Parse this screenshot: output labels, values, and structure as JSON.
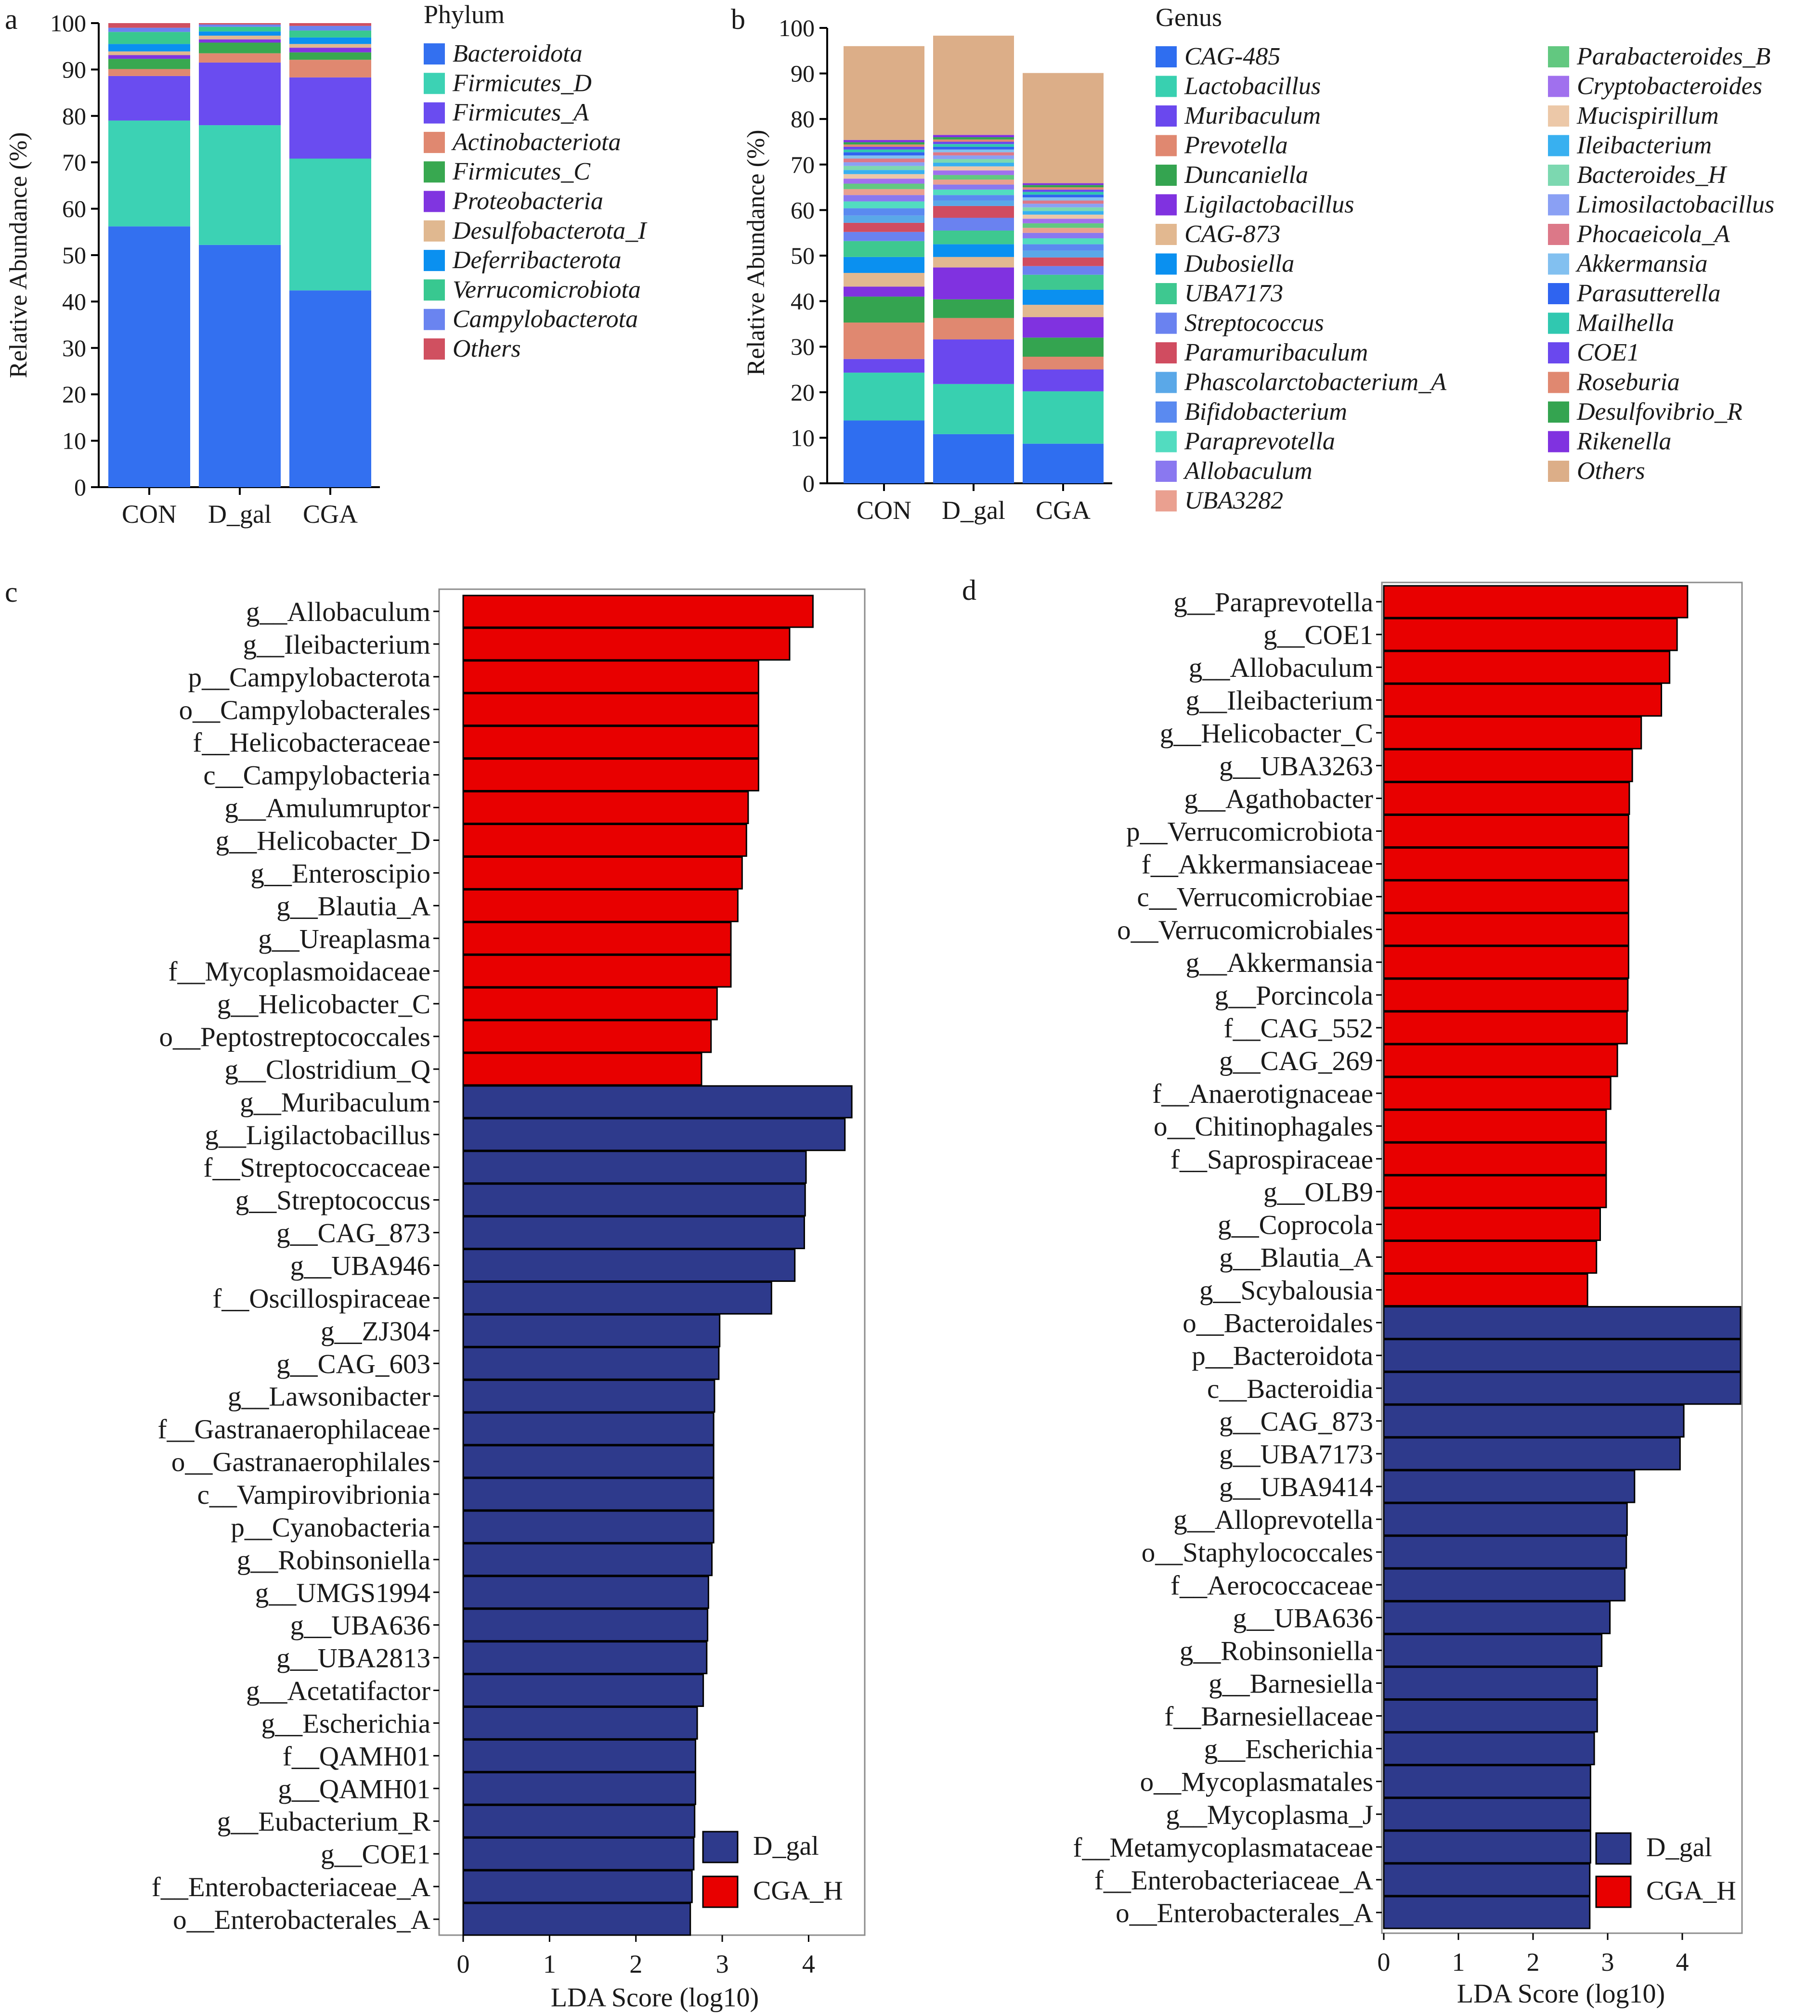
{
  "panel_labels": [
    "a",
    "b",
    "c",
    "d"
  ],
  "chart_data": [
    {
      "panel": "a",
      "type": "stacked_bar",
      "categories": [
        "CON",
        "D_gal",
        "CGA"
      ],
      "ylabel": "Relative Abundance (%)",
      "ylim": [
        0,
        100
      ],
      "yticks": [
        0,
        10,
        20,
        30,
        40,
        50,
        60,
        70,
        80,
        90,
        100
      ],
      "legend_title": "Phylum",
      "series": [
        {
          "name": "Bacteroidota",
          "color": "#3370f0",
          "values": [
            56.2,
            52.2,
            42.4
          ]
        },
        {
          "name": "Firmicutes_D",
          "color": "#3cd2b4",
          "values": [
            22.8,
            25.8,
            28.4
          ]
        },
        {
          "name": "Firmicutes_A",
          "color": "#6a4cf0",
          "values": [
            9.6,
            13.5,
            17.5
          ]
        },
        {
          "name": "Actinobacteriota",
          "color": "#e08870",
          "values": [
            1.5,
            2.0,
            3.8
          ]
        },
        {
          "name": "Firmicutes_C",
          "color": "#38a850",
          "values": [
            2.2,
            2.3,
            1.6
          ]
        },
        {
          "name": "Proteobacteria",
          "color": "#8035e0",
          "values": [
            0.8,
            0.7,
            1.0
          ]
        },
        {
          "name": "Desulfobacterota_I",
          "color": "#e0b890",
          "values": [
            0.8,
            0.8,
            0.8
          ]
        },
        {
          "name": "Deferribacterota",
          "color": "#0a90f0",
          "values": [
            1.6,
            0.9,
            1.4
          ]
        },
        {
          "name": "Verrucomicrobiota",
          "color": "#38c890",
          "values": [
            2.6,
            1.0,
            1.5
          ]
        },
        {
          "name": "Campylobacterota",
          "color": "#6a84f0",
          "values": [
            0.9,
            0.5,
            1.0
          ]
        },
        {
          "name": "Others",
          "color": "#d05060",
          "values": [
            1.0,
            0.3,
            0.6
          ]
        }
      ]
    },
    {
      "panel": "b",
      "type": "stacked_bar",
      "categories": [
        "CON",
        "D_gal",
        "CGA"
      ],
      "ylabel": "Relative Abundance (%)",
      "ylim": [
        0,
        100
      ],
      "yticks": [
        0,
        10,
        20,
        30,
        40,
        50,
        60,
        70,
        80,
        90,
        100
      ],
      "legend_title": "Genus",
      "series": [
        {
          "name": "CAG-485",
          "color": "#2f6ef0",
          "values": [
            13.8,
            10.8,
            8.7
          ]
        },
        {
          "name": "Lactobacillus",
          "color": "#38d0b0",
          "values": [
            10.5,
            11.0,
            11.5
          ]
        },
        {
          "name": "Muribaculum",
          "color": "#6a48ee",
          "values": [
            3.0,
            9.8,
            4.8
          ]
        },
        {
          "name": "Prevotella",
          "color": "#e08870",
          "values": [
            8.0,
            4.7,
            2.8
          ]
        },
        {
          "name": "Duncaniella",
          "color": "#34a450",
          "values": [
            5.7,
            4.1,
            4.2
          ]
        },
        {
          "name": "Ligilactobacillus",
          "color": "#8032e0",
          "values": [
            2.2,
            7.0,
            4.5
          ]
        },
        {
          "name": "CAG-873",
          "color": "#e2b890",
          "values": [
            3.0,
            2.3,
            2.7
          ]
        },
        {
          "name": "Dubosiella",
          "color": "#0a90f0",
          "values": [
            3.5,
            2.8,
            3.3
          ]
        },
        {
          "name": "UBA7173",
          "color": "#3ec890",
          "values": [
            3.5,
            3.0,
            3.3
          ]
        },
        {
          "name": "Streptococcus",
          "color": "#6a82f0",
          "values": [
            2.0,
            2.8,
            1.9
          ]
        },
        {
          "name": "Paramuribaculum",
          "color": "#d04c60",
          "values": [
            2.0,
            2.6,
            1.9
          ]
        },
        {
          "name": "Phascolarctobacterium_A",
          "color": "#5aa8e8",
          "values": [
            1.6,
            1.2,
            1.5
          ]
        },
        {
          "name": "Bifidobacterium",
          "color": "#5a8af0",
          "values": [
            1.6,
            1.2,
            1.4
          ]
        },
        {
          "name": "Paraprevotella",
          "color": "#52dcc0",
          "values": [
            1.5,
            1.2,
            1.3
          ]
        },
        {
          "name": "Allobaculum",
          "color": "#8a78f0",
          "values": [
            1.4,
            1.1,
            1.2
          ]
        },
        {
          "name": "UBA3282",
          "color": "#eaa090",
          "values": [
            1.3,
            1.1,
            1.1
          ]
        },
        {
          "name": "Parabacteroides_B",
          "color": "#62c880",
          "values": [
            1.2,
            1.0,
            1.0
          ]
        },
        {
          "name": "Cryptobacteroides",
          "color": "#a070ee",
          "values": [
            1.1,
            1.0,
            1.0
          ]
        },
        {
          "name": "Mucispirillum",
          "color": "#ecc8a8",
          "values": [
            1.0,
            0.9,
            0.9
          ]
        },
        {
          "name": "Ileibacterium",
          "color": "#38b0f0",
          "values": [
            0.9,
            0.8,
            0.8
          ]
        },
        {
          "name": "Bacteroides_H",
          "color": "#7cd8b0",
          "values": [
            0.9,
            0.8,
            0.8
          ]
        },
        {
          "name": "Limosilactobacillus",
          "color": "#8aa0f4",
          "values": [
            0.8,
            0.8,
            0.8
          ]
        },
        {
          "name": "Phocaeicola_A",
          "color": "#dc7888",
          "values": [
            0.8,
            0.7,
            0.7
          ]
        },
        {
          "name": "Akkermansia",
          "color": "#82c0f0",
          "values": [
            0.7,
            0.6,
            0.7
          ]
        },
        {
          "name": "Parasutterella",
          "color": "#2f64f0",
          "values": [
            0.7,
            0.6,
            0.6
          ]
        },
        {
          "name": "Mailhella",
          "color": "#30c8b0",
          "values": [
            0.6,
            0.6,
            0.6
          ]
        },
        {
          "name": "COE1",
          "color": "#6a48ee",
          "values": [
            0.6,
            0.5,
            0.5
          ]
        },
        {
          "name": "Roseburia",
          "color": "#e08870",
          "values": [
            0.5,
            0.5,
            0.5
          ]
        },
        {
          "name": "Desulfovibrio_R",
          "color": "#34a450",
          "values": [
            0.5,
            0.5,
            0.5
          ]
        },
        {
          "name": "Rikenella",
          "color": "#8032e0",
          "values": [
            0.5,
            0.5,
            0.4
          ]
        },
        {
          "name": "Others",
          "color": "#dcae88",
          "values": [
            20.6,
            21.8,
            24.2
          ]
        }
      ]
    },
    {
      "panel": "c",
      "type": "lda_bar",
      "xlabel": "LDA Score (log10)",
      "xlim": [
        0,
        4.65
      ],
      "xticks": [
        0,
        1,
        2,
        3,
        4
      ],
      "legend": [
        {
          "name": "D_gal",
          "color": "#2e3a8c"
        },
        {
          "name": "CGA_H",
          "color": "#e80000"
        }
      ],
      "features": [
        {
          "label": "g__Allobaculum",
          "value": 4.05,
          "group": "CGA_H"
        },
        {
          "label": "g__Ileibacterium",
          "value": 3.78,
          "group": "CGA_H"
        },
        {
          "label": "p__Campylobacterota",
          "value": 3.42,
          "group": "CGA_H"
        },
        {
          "label": "o__Campylobacterales",
          "value": 3.42,
          "group": "CGA_H"
        },
        {
          "label": "f__Helicobacteraceae",
          "value": 3.42,
          "group": "CGA_H"
        },
        {
          "label": "c__Campylobacteria",
          "value": 3.42,
          "group": "CGA_H"
        },
        {
          "label": "g__Amulumruptor",
          "value": 3.3,
          "group": "CGA_H"
        },
        {
          "label": "g__Helicobacter_D",
          "value": 3.28,
          "group": "CGA_H"
        },
        {
          "label": "g__Enteroscipio",
          "value": 3.23,
          "group": "CGA_H"
        },
        {
          "label": "g__Blautia_A",
          "value": 3.18,
          "group": "CGA_H"
        },
        {
          "label": "g__Ureaplasma",
          "value": 3.1,
          "group": "CGA_H"
        },
        {
          "label": "f__Mycoplasmoidaceae",
          "value": 3.1,
          "group": "CGA_H"
        },
        {
          "label": "g__Helicobacter_C",
          "value": 2.94,
          "group": "CGA_H"
        },
        {
          "label": "o__Peptostreptococcales",
          "value": 2.87,
          "group": "CGA_H"
        },
        {
          "label": "g__Clostridium_Q",
          "value": 2.76,
          "group": "CGA_H"
        },
        {
          "label": "g__Muribaculum",
          "value": 4.5,
          "group": "D_gal"
        },
        {
          "label": "g__Ligilactobacillus",
          "value": 4.42,
          "group": "D_gal"
        },
        {
          "label": "f__Streptococcaceae",
          "value": 3.97,
          "group": "D_gal"
        },
        {
          "label": "g__Streptococcus",
          "value": 3.96,
          "group": "D_gal"
        },
        {
          "label": "g__CAG_873",
          "value": 3.95,
          "group": "D_gal"
        },
        {
          "label": "g__UBA946",
          "value": 3.84,
          "group": "D_gal"
        },
        {
          "label": "f__Oscillospiraceae",
          "value": 3.57,
          "group": "D_gal"
        },
        {
          "label": "g__ZJ304",
          "value": 2.97,
          "group": "D_gal"
        },
        {
          "label": "g__CAG_603",
          "value": 2.96,
          "group": "D_gal"
        },
        {
          "label": "g__Lawsonibacter",
          "value": 2.91,
          "group": "D_gal"
        },
        {
          "label": "f__Gastranaerophilaceae",
          "value": 2.9,
          "group": "D_gal"
        },
        {
          "label": "o__Gastranaerophilales",
          "value": 2.9,
          "group": "D_gal"
        },
        {
          "label": "c__Vampirovibrionia",
          "value": 2.9,
          "group": "D_gal"
        },
        {
          "label": "p__Cyanobacteria",
          "value": 2.9,
          "group": "D_gal"
        },
        {
          "label": "g__Robinsoniella",
          "value": 2.88,
          "group": "D_gal"
        },
        {
          "label": "g__UMGS1994",
          "value": 2.84,
          "group": "D_gal"
        },
        {
          "label": "g__UBA636",
          "value": 2.83,
          "group": "D_gal"
        },
        {
          "label": "g__UBA2813",
          "value": 2.82,
          "group": "D_gal"
        },
        {
          "label": "g__Acetatifactor",
          "value": 2.78,
          "group": "D_gal"
        },
        {
          "label": "g__Escherichia",
          "value": 2.71,
          "group": "D_gal"
        },
        {
          "label": "f__QAMH01",
          "value": 2.69,
          "group": "D_gal"
        },
        {
          "label": "g__QAMH01",
          "value": 2.69,
          "group": "D_gal"
        },
        {
          "label": "g__Eubacterium_R",
          "value": 2.68,
          "group": "D_gal"
        },
        {
          "label": "g__COE1",
          "value": 2.67,
          "group": "D_gal"
        },
        {
          "label": "f__Enterobacteriaceae_A",
          "value": 2.65,
          "group": "D_gal"
        },
        {
          "label": "o__Enterobacterales_A",
          "value": 2.63,
          "group": "D_gal"
        }
      ]
    },
    {
      "panel": "d",
      "type": "lda_bar",
      "xlabel": "LDA Score (log10)",
      "xlim": [
        0,
        4.8
      ],
      "xticks": [
        0,
        1,
        2,
        3,
        4
      ],
      "legend": [
        {
          "name": "D_gal",
          "color": "#2e3a8c"
        },
        {
          "name": "CGA_H",
          "color": "#e80000"
        }
      ],
      "features": [
        {
          "label": "g__Paraprevotella",
          "value": 4.07,
          "group": "CGA_H"
        },
        {
          "label": "g__COE1",
          "value": 3.93,
          "group": "CGA_H"
        },
        {
          "label": "g__Allobaculum",
          "value": 3.83,
          "group": "CGA_H"
        },
        {
          "label": "g__Ileibacterium",
          "value": 3.72,
          "group": "CGA_H"
        },
        {
          "label": "g__Helicobacter_C",
          "value": 3.45,
          "group": "CGA_H"
        },
        {
          "label": "g__UBA3263",
          "value": 3.33,
          "group": "CGA_H"
        },
        {
          "label": "g__Agathobacter",
          "value": 3.29,
          "group": "CGA_H"
        },
        {
          "label": "p__Verrucomicrobiota",
          "value": 3.28,
          "group": "CGA_H"
        },
        {
          "label": "f__Akkermansiaceae",
          "value": 3.28,
          "group": "CGA_H"
        },
        {
          "label": "c__Verrucomicrobiae",
          "value": 3.28,
          "group": "CGA_H"
        },
        {
          "label": "o__Verrucomicrobiales",
          "value": 3.28,
          "group": "CGA_H"
        },
        {
          "label": "g__Akkermansia",
          "value": 3.28,
          "group": "CGA_H"
        },
        {
          "label": "g__Porcincola",
          "value": 3.27,
          "group": "CGA_H"
        },
        {
          "label": "f__CAG_552",
          "value": 3.26,
          "group": "CGA_H"
        },
        {
          "label": "g__CAG_269",
          "value": 3.13,
          "group": "CGA_H"
        },
        {
          "label": "f__Anaerotignaceae",
          "value": 3.04,
          "group": "CGA_H"
        },
        {
          "label": "o__Chitinophagales",
          "value": 2.98,
          "group": "CGA_H"
        },
        {
          "label": "f__Saprospiraceae",
          "value": 2.98,
          "group": "CGA_H"
        },
        {
          "label": "g__OLB9",
          "value": 2.98,
          "group": "CGA_H"
        },
        {
          "label": "g__Coprocola",
          "value": 2.9,
          "group": "CGA_H"
        },
        {
          "label": "g__Blautia_A",
          "value": 2.85,
          "group": "CGA_H"
        },
        {
          "label": "g__Scybalousia",
          "value": 2.73,
          "group": "CGA_H"
        },
        {
          "label": "o__Bacteroidales",
          "value": 4.78,
          "group": "D_gal"
        },
        {
          "label": "p__Bacteroidota",
          "value": 4.78,
          "group": "D_gal"
        },
        {
          "label": "c__Bacteroidia",
          "value": 4.78,
          "group": "D_gal"
        },
        {
          "label": "g__CAG_873",
          "value": 4.02,
          "group": "D_gal"
        },
        {
          "label": "g__UBA7173",
          "value": 3.97,
          "group": "D_gal"
        },
        {
          "label": "g__UBA9414",
          "value": 3.36,
          "group": "D_gal"
        },
        {
          "label": "g__Alloprevotella",
          "value": 3.26,
          "group": "D_gal"
        },
        {
          "label": "o__Staphylococcales",
          "value": 3.25,
          "group": "D_gal"
        },
        {
          "label": "f__Aerococcaceae",
          "value": 3.23,
          "group": "D_gal"
        },
        {
          "label": "g__UBA636",
          "value": 3.03,
          "group": "D_gal"
        },
        {
          "label": "g__Robinsoniella",
          "value": 2.92,
          "group": "D_gal"
        },
        {
          "label": "g__Barnesiella",
          "value": 2.86,
          "group": "D_gal"
        },
        {
          "label": "f__Barnesiellaceae",
          "value": 2.86,
          "group": "D_gal"
        },
        {
          "label": "g__Escherichia",
          "value": 2.82,
          "group": "D_gal"
        },
        {
          "label": "o__Mycoplasmatales",
          "value": 2.77,
          "group": "D_gal"
        },
        {
          "label": "g__Mycoplasma_J",
          "value": 2.77,
          "group": "D_gal"
        },
        {
          "label": "f__Metamycoplasmataceae",
          "value": 2.77,
          "group": "D_gal"
        },
        {
          "label": "f__Enterobacteriaceae_A",
          "value": 2.76,
          "group": "D_gal"
        },
        {
          "label": "o__Enterobacterales_A",
          "value": 2.76,
          "group": "D_gal"
        }
      ]
    }
  ]
}
